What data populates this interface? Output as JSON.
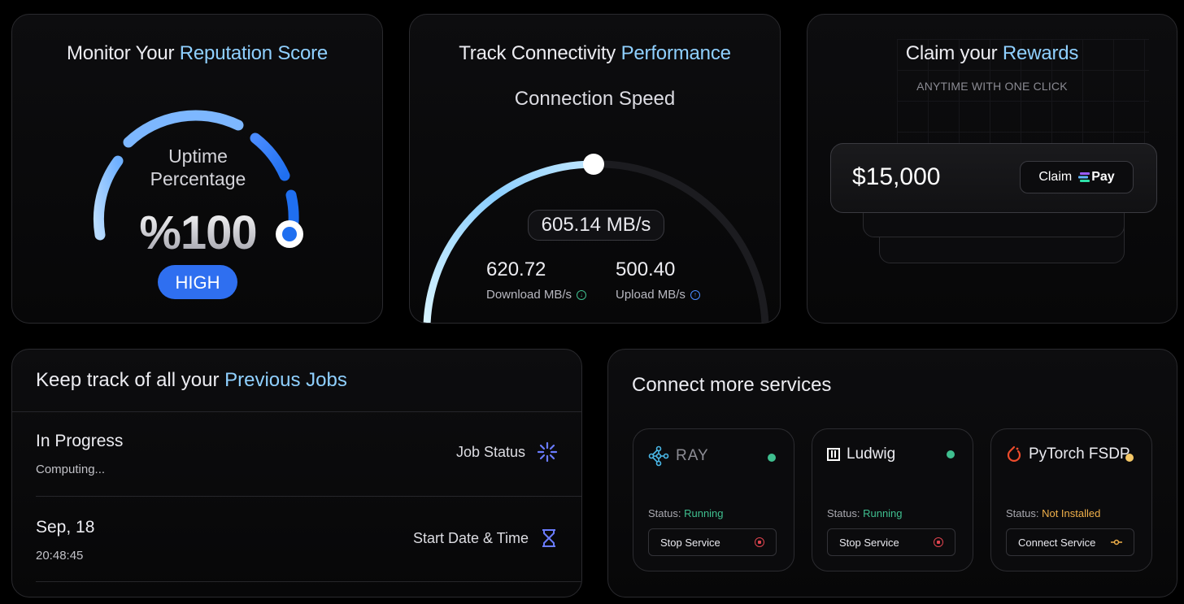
{
  "reputation": {
    "title_prefix": "Monitor Your ",
    "title_accent": "Reputation Score",
    "label_line1": "Uptime",
    "label_line2": "Percentage",
    "value": "%100",
    "badge": "HIGH",
    "level_fraction": 1.0
  },
  "connectivity": {
    "title_prefix": "Track Connectivity ",
    "title_accent": "Performance",
    "subtitle": "Connection Speed",
    "current_speed": "605.14 MB/s",
    "download_value": "620.72",
    "download_label": "Download MB/s",
    "upload_value": "500.40",
    "upload_label": "Upload MB/s",
    "level_fraction": 0.5
  },
  "rewards": {
    "title_prefix": "Claim your ",
    "title_accent": "Rewards",
    "subtitle": "ANYTIME WITH ONE CLICK",
    "amount": "$15,000",
    "claim_label": "Claim",
    "pay_label": "Pay"
  },
  "jobs": {
    "title_prefix": "Keep track of all your ",
    "title_accent": "Previous Jobs",
    "rows": [
      {
        "title": "In Progress",
        "sub": "Computing...",
        "right_label": "Job Status"
      },
      {
        "title": "Sep, 18",
        "sub": "20:48:45",
        "right_label": "Start Date & Time"
      }
    ]
  },
  "services": {
    "title": "Connect more services",
    "status_prefix": "Status:",
    "items": [
      {
        "name": "RAY",
        "status": "Running",
        "status_color": "#3fbf8f",
        "dot_color": "#3fbf8f",
        "action": "Stop Service",
        "action_icon_color": "#e0444f"
      },
      {
        "name": "Ludwig",
        "status": "Running",
        "status_color": "#3fbf8f",
        "dot_color": "#3fbf8f",
        "action": "Stop Service",
        "action_icon_color": "#e0444f"
      },
      {
        "name": "PyTorch FSDP",
        "status": "Not Installed",
        "status_color": "#f0b04a",
        "dot_color": "#f5c867",
        "action": "Connect Service",
        "action_icon_color": "#f0b04a"
      }
    ]
  },
  "colors": {
    "accent": "#8fd0ff",
    "primary_blue": "#2f6ff0"
  }
}
